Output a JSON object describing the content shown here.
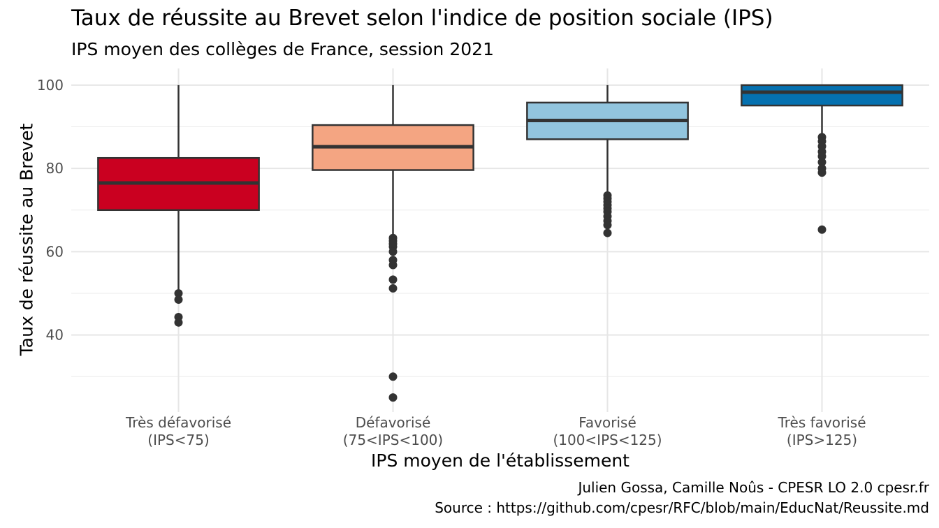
{
  "chart_data": {
    "type": "boxplot",
    "title": "Taux de réussite au Brevet selon l'indice de position sociale (IPS)",
    "subtitle": "IPS moyen des collèges de France, session 2021",
    "xlabel": "IPS moyen de l'établissement",
    "ylabel": "Taux de réussite au Brevet",
    "ylim": [
      21.5,
      104
    ],
    "y_ticks": [
      40,
      60,
      80,
      100
    ],
    "y_minor_ticks": [
      30,
      50,
      70,
      90
    ],
    "grid": true,
    "legend": "none",
    "caption": [
      "Julien Gossa, Camille Noûs - CPESR LO 2.0 cpesr.fr",
      "Source : https://github.com/cpesr/RFC/blob/main/EducNat/Reussite.md"
    ],
    "categories": [
      {
        "label_line1": "Très défavorisé",
        "label_line2": "(IPS<75)",
        "color": "#ca0020",
        "whisker_low": 51,
        "q1": 70,
        "median": 76.5,
        "q3": 82.5,
        "whisker_high": 100,
        "outliers": [
          50,
          48.5,
          44.3,
          43
        ]
      },
      {
        "label_line1": "Défavorisé",
        "label_line2": "(75<IPS<100)",
        "color": "#f4a582",
        "whisker_low": 64,
        "q1": 79.6,
        "median": 85.2,
        "q3": 90.4,
        "whisker_high": 100,
        "outliers": [
          63.3,
          62.6,
          61.9,
          61.2,
          60,
          58,
          56.8,
          53.3,
          51.2,
          30,
          25
        ]
      },
      {
        "label_line1": "Favorisé",
        "label_line2": "(100<IPS<125)",
        "color": "#92c5de",
        "whisker_low": 74,
        "q1": 87,
        "median": 91.5,
        "q3": 95.8,
        "whisker_high": 100,
        "outliers": [
          73.5,
          72.8,
          72,
          71.2,
          70.4,
          69.6,
          68.5,
          67.4,
          66.4,
          64.5
        ]
      },
      {
        "label_line1": "Très favorisé",
        "label_line2": "(IPS>125)",
        "color": "#0571b0",
        "whisker_low": 88,
        "q1": 95.1,
        "median": 98.3,
        "q3": 100,
        "whisker_high": 100,
        "outliers": [
          87.5,
          86.5,
          85.3,
          84,
          82.9,
          81.5,
          80,
          79,
          65.3
        ]
      }
    ]
  }
}
